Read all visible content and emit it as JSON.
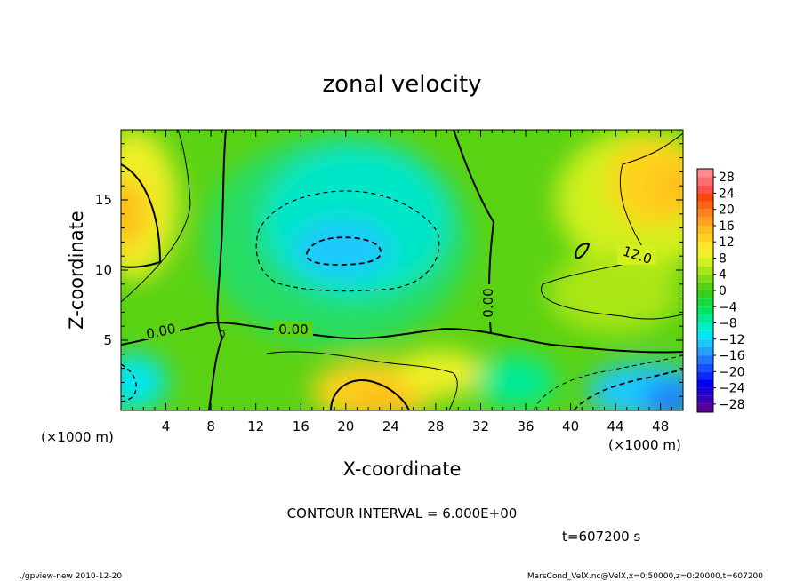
{
  "chart_data": {
    "type": "heatmap",
    "title": "zonal velocity",
    "xlabel": "X-coordinate",
    "ylabel": "Z-coordinate",
    "x_unit_left": "(×1000 m)",
    "x_unit_right": "(×1000 m)",
    "xlim": [
      0,
      50
    ],
    "ylim": [
      0,
      20
    ],
    "x_ticks": [
      4,
      8,
      12,
      16,
      20,
      24,
      28,
      32,
      36,
      40,
      44,
      48
    ],
    "y_ticks": [
      5,
      10,
      15
    ],
    "colorbar": {
      "labels": [
        "28",
        "24",
        "20",
        "16",
        "12",
        "8",
        "4",
        "0",
        "−4",
        "−8",
        "−12",
        "−16",
        "−20",
        "−24",
        "−28"
      ],
      "levels": [
        -30,
        -28,
        -26,
        -24,
        -22,
        -20,
        -18,
        -16,
        -14,
        -12,
        -10,
        -8,
        -6,
        -4,
        -2,
        0,
        2,
        4,
        6,
        8,
        10,
        12,
        14,
        16,
        18,
        20,
        22,
        24,
        26,
        28,
        30
      ],
      "colors": [
        "#5a0096",
        "#3c00b4",
        "#1e00d2",
        "#0000f0",
        "#0a28ff",
        "#1450ff",
        "#1e78ff",
        "#28a0ff",
        "#1ec8ff",
        "#00e6f0",
        "#00f0c8",
        "#00eb96",
        "#00e664",
        "#14dc3c",
        "#32d21e",
        "#5ad214",
        "#82dc14",
        "#aae614",
        "#d2f01e",
        "#f0f028",
        "#ffe61e",
        "#ffd21e",
        "#ffbe1e",
        "#ffa01e",
        "#ff821e",
        "#ff6414",
        "#ff460a",
        "#ff5050",
        "#ff6e6e",
        "#ff8c8c"
      ]
    },
    "contour_labels": [
      "0.00",
      "0.00",
      "0.00",
      "12.0",
      "0"
    ],
    "contour_interval": "CONTOUR INTERVAL = 6.000E+00",
    "time": "t=607200 s",
    "grid": false
  },
  "footer": {
    "left": "./gpview-new  2010-12-20",
    "right": "MarsCond_VelX.nc@VelX,x=0:50000,z=0:20000,t=607200"
  }
}
